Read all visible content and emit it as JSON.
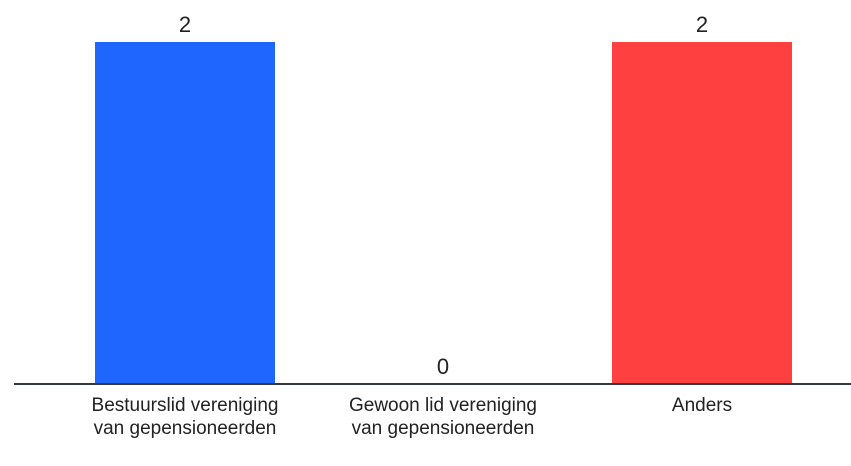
{
  "chart_data": {
    "type": "bar",
    "categories": [
      "Bestuurslid vereniging van gepensioneerden",
      "Gewoon lid vereniging van gepensioneerden",
      "Anders"
    ],
    "values": [
      2,
      0,
      2
    ],
    "data_labels": [
      "2",
      "0",
      "2"
    ],
    "colors": [
      "#1f66ff",
      "#cccccc",
      "#ff4040"
    ],
    "ylim": [
      0,
      2
    ],
    "grid": false,
    "legend": "none",
    "title": "",
    "xlabel": "",
    "ylabel": ""
  }
}
